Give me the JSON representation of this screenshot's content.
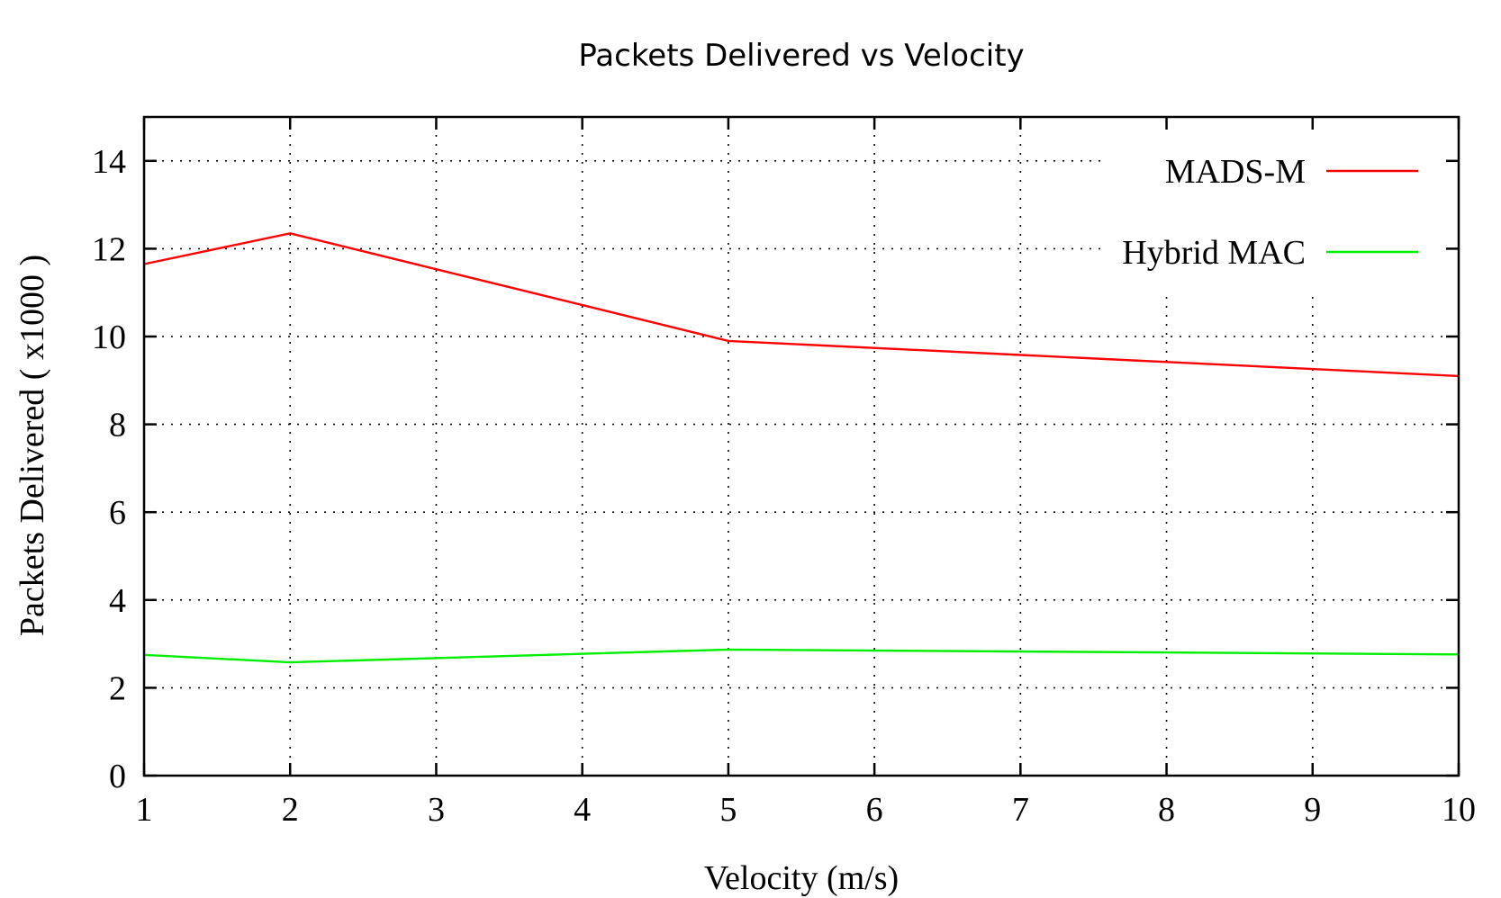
{
  "chart_data": {
    "type": "line",
    "title": "Packets Delivered vs Velocity",
    "xlabel": "Velocity (m/s)",
    "ylabel": "Packets Delivered ( x1000 )",
    "xlim": [
      1,
      10
    ],
    "ylim": [
      0,
      15
    ],
    "xticks": [
      1,
      2,
      3,
      4,
      5,
      6,
      7,
      8,
      9,
      10
    ],
    "yticks": [
      0,
      2,
      4,
      6,
      8,
      10,
      12,
      14
    ],
    "grid": true,
    "legend_position": "top-right",
    "series": [
      {
        "name": "MADS-M",
        "color": "#ff0000",
        "x": [
          1,
          2,
          5,
          10
        ],
        "y": [
          11.65,
          12.35,
          9.9,
          9.1
        ]
      },
      {
        "name": "Hybrid MAC",
        "color": "#00ee00",
        "x": [
          1,
          2,
          5,
          10
        ],
        "y": [
          2.75,
          2.58,
          2.87,
          2.76
        ]
      }
    ]
  }
}
